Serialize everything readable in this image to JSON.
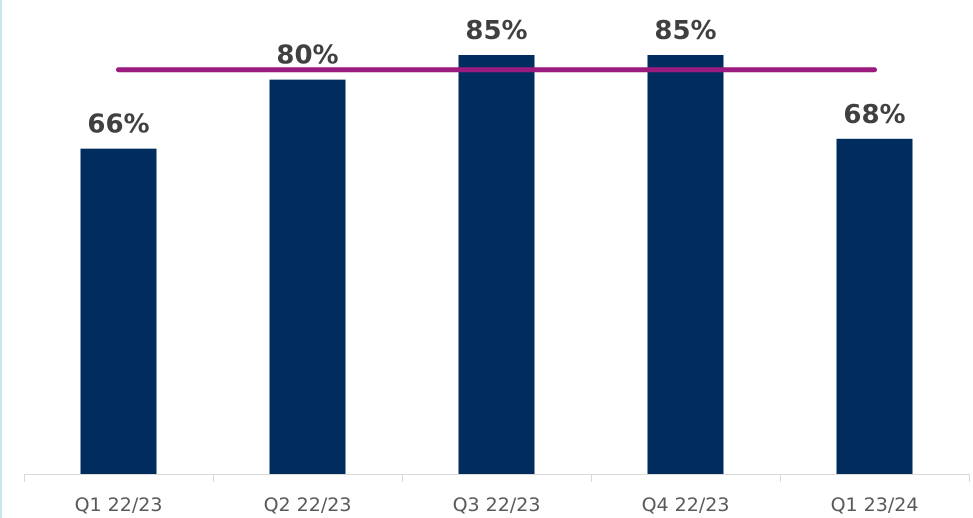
{
  "chart_data": {
    "type": "bar",
    "categories": [
      "Q1 22/23",
      "Q2 22/23",
      "Q3 22/23",
      "Q4 22/23",
      "Q1 23/24"
    ],
    "values": [
      66,
      80,
      85,
      85,
      68
    ],
    "data_labels": [
      "66%",
      "80%",
      "85%",
      "85%",
      "68%"
    ],
    "target_line": {
      "value": 82
    },
    "ylim": [
      0,
      100
    ],
    "grid": false,
    "legend": "none",
    "colors": {
      "bar": "#002d5e",
      "target_line": "#9b1a7e",
      "axis": "#d9d9d9"
    }
  }
}
